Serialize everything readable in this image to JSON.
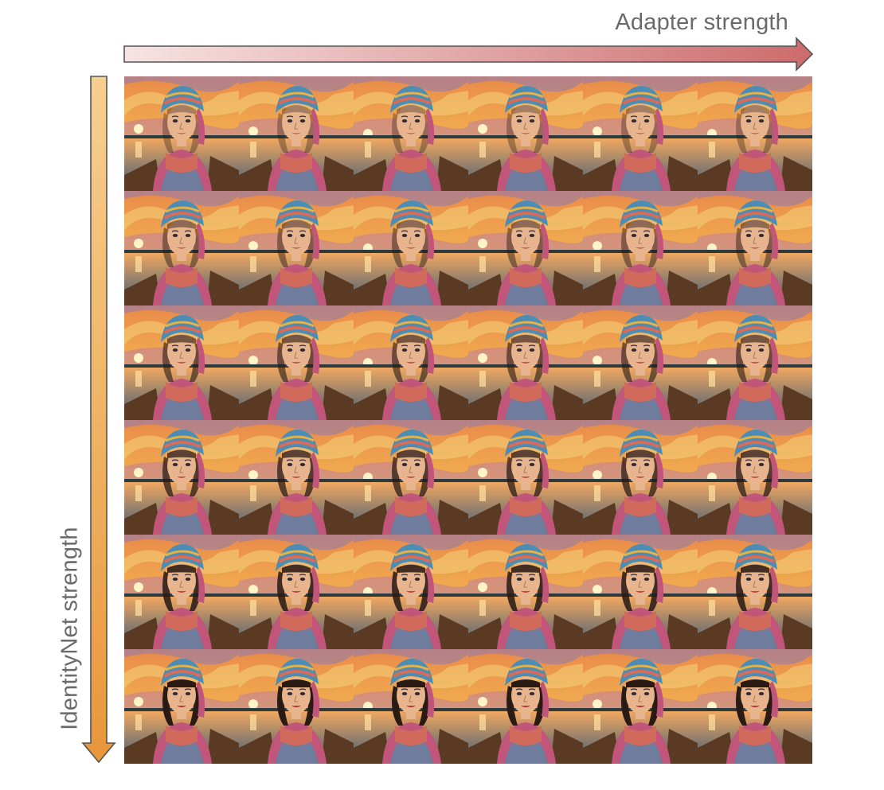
{
  "axes": {
    "x_label": "Adapter strength",
    "y_label": "IdentityNet strength"
  },
  "colors": {
    "x_arrow_start": "#f7e3e3",
    "x_arrow_end": "#cc6b6b",
    "y_arrow_start": "#f7cf90",
    "y_arrow_end": "#e8973a",
    "arrow_stroke": "#555555",
    "sky_top": "#e98a4a",
    "sky_mid": "#f2b14f",
    "cloud_purple": "#a97ab0",
    "water": "#3d5a78",
    "boat": "#5a3a22",
    "headscarf": "#4a8db5",
    "scarf": "#c2557a",
    "skin": "#e8b48e",
    "hair": "#2a1a14"
  },
  "grid": {
    "rows": 6,
    "cols": 6,
    "cell_name": "portrait-image"
  }
}
